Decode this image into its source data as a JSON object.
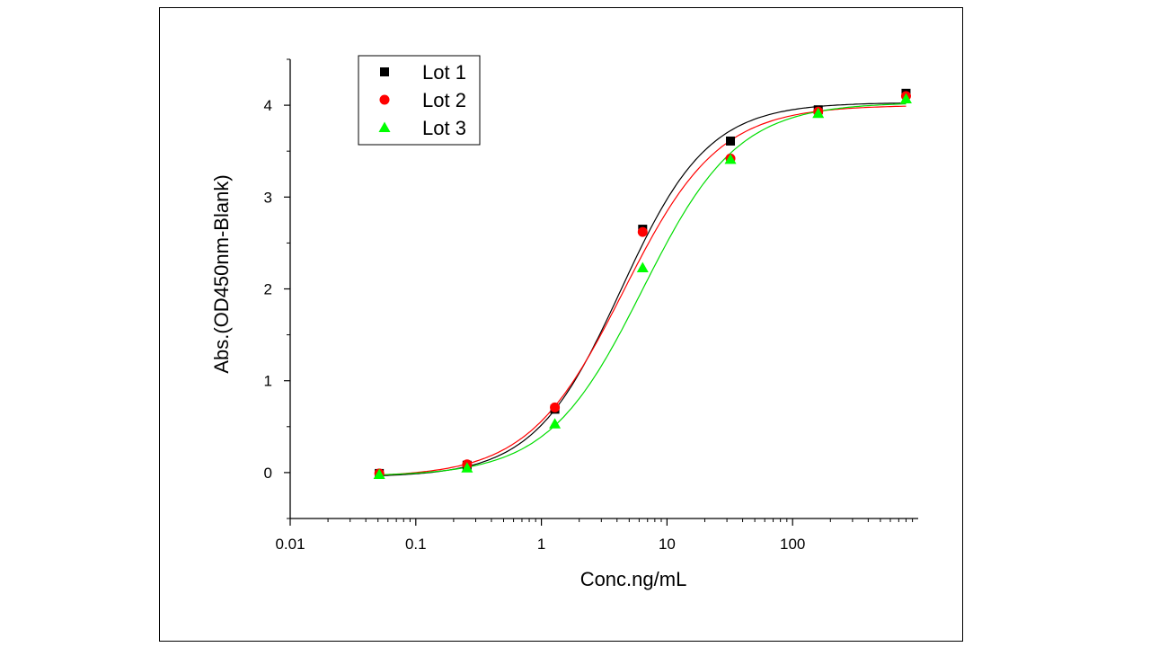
{
  "chart_data": {
    "type": "scatter",
    "title": "",
    "xlabel": "Conc.ng/mL",
    "ylabel": "Abs.(OD450nm-Blank)",
    "x_scale": "log",
    "xlim": [
      0.01,
      1000
    ],
    "ylim": [
      -0.5,
      4.5
    ],
    "x_ticks": [
      {
        "value": 0.01,
        "label": "0.01"
      },
      {
        "value": 0.1,
        "label": "0.1"
      },
      {
        "value": 1,
        "label": "1"
      },
      {
        "value": 10,
        "label": "10"
      },
      {
        "value": 100,
        "label": "100"
      }
    ],
    "y_ticks": [
      {
        "value": 0,
        "label": "0"
      },
      {
        "value": 1,
        "label": "1"
      },
      {
        "value": 2,
        "label": "2"
      },
      {
        "value": 3,
        "label": "3"
      },
      {
        "value": 4,
        "label": "4"
      }
    ],
    "grid": false,
    "legend_position": "top-left",
    "fit": "four-parameter logistic curve per series",
    "series": [
      {
        "name": "Lot 1",
        "marker": "square",
        "color": "#000000",
        "curve_color": "#000000",
        "x": [
          0.0512,
          0.256,
          1.28,
          6.4,
          32,
          160,
          800
        ],
        "y": [
          -0.01,
          0.08,
          0.69,
          2.65,
          3.61,
          3.95,
          4.13
        ],
        "fit": {
          "bottom": -0.05,
          "top": 4.03,
          "ec50": 4.3,
          "hill": 1.25
        }
      },
      {
        "name": "Lot 2",
        "marker": "circle",
        "color": "#ff0000",
        "curve_color": "#ff0000",
        "x": [
          0.0512,
          0.256,
          1.28,
          6.4,
          32,
          160,
          800
        ],
        "y": [
          -0.01,
          0.09,
          0.71,
          2.62,
          3.42,
          3.93,
          4.1
        ],
        "fit": {
          "bottom": -0.05,
          "top": 4.0,
          "ec50": 4.5,
          "hill": 1.15
        }
      },
      {
        "name": "Lot 3",
        "marker": "triangle",
        "color": "#00ff00",
        "curve_color": "#00dd00",
        "x": [
          0.0512,
          0.256,
          1.28,
          6.4,
          32,
          160,
          800
        ],
        "y": [
          -0.02,
          0.05,
          0.53,
          2.23,
          3.41,
          3.91,
          4.07
        ],
        "fit": {
          "bottom": -0.04,
          "top": 4.03,
          "ec50": 6.4,
          "hill": 1.15
        }
      }
    ]
  }
}
